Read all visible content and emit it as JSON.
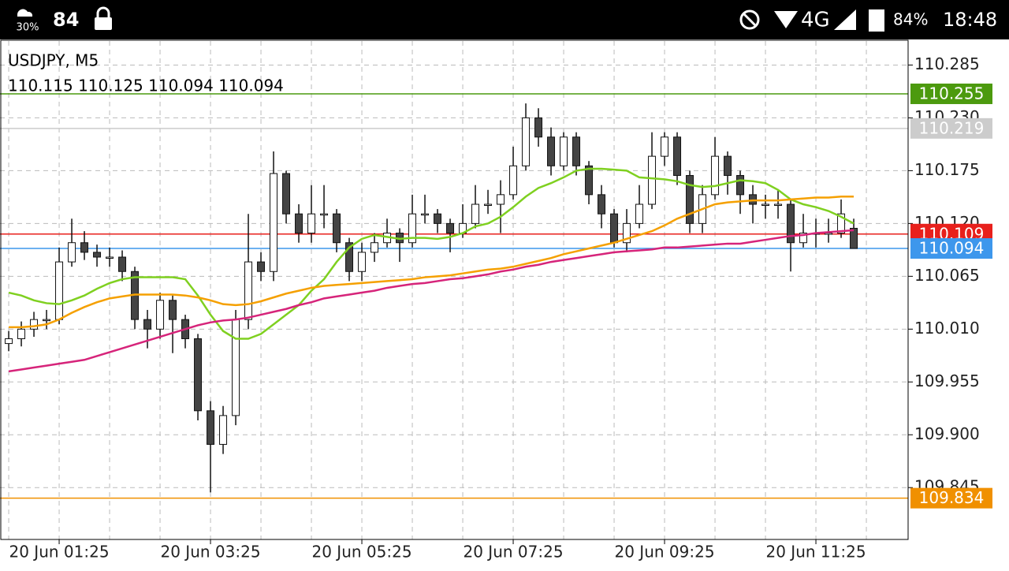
{
  "status_bar": {
    "weather": "30%",
    "notification": "84",
    "network": "4G",
    "battery": "84%",
    "time": "18:48"
  },
  "chart_data": {
    "type": "candlestick",
    "title": "USDJPY, M5",
    "ohlc_label": "110.115 110.125 110.094 110.094",
    "open": [
      109.995,
      110.0,
      110.01,
      110.02,
      110.02,
      110.08,
      110.1,
      110.09,
      110.085,
      110.085,
      110.07,
      110.02,
      110.01,
      110.04,
      110.02,
      110.0,
      109.925,
      109.89,
      109.92,
      110.02,
      110.08,
      110.07,
      110.172,
      110.13,
      110.11,
      110.13,
      110.13,
      110.1,
      110.07,
      110.09,
      110.1,
      110.11,
      110.1,
      110.13,
      110.13,
      110.12,
      110.11,
      110.12,
      110.14,
      110.14,
      110.15,
      110.18,
      110.23,
      110.21,
      110.18,
      110.21,
      110.18,
      110.15,
      110.13,
      110.1,
      110.12,
      110.14,
      110.19,
      110.21,
      110.17,
      110.12,
      110.15,
      110.19,
      110.17,
      110.15,
      110.14,
      110.14,
      110.14,
      110.1,
      110.11,
      110.11,
      110.11,
      110.115
    ],
    "high": [
      110.008,
      110.018,
      110.028,
      110.03,
      110.095,
      110.125,
      110.112,
      110.098,
      110.095,
      110.092,
      110.075,
      110.03,
      110.048,
      110.045,
      110.025,
      110.005,
      109.935,
      109.93,
      110.03,
      110.13,
      110.09,
      110.195,
      110.175,
      110.14,
      110.16,
      110.16,
      110.135,
      110.105,
      110.1,
      110.11,
      110.125,
      110.115,
      110.15,
      110.15,
      110.135,
      110.125,
      110.14,
      110.16,
      110.155,
      110.165,
      110.2,
      110.245,
      110.24,
      110.22,
      110.215,
      110.215,
      110.185,
      110.16,
      110.135,
      110.135,
      110.16,
      110.215,
      110.215,
      110.215,
      110.175,
      110.16,
      110.21,
      110.195,
      110.175,
      110.16,
      110.15,
      110.155,
      110.145,
      110.13,
      110.125,
      110.125,
      110.145,
      110.125
    ],
    "low": [
      109.987,
      109.992,
      110.002,
      110.01,
      110.015,
      110.075,
      110.082,
      110.075,
      110.075,
      110.06,
      110.01,
      109.99,
      110.0,
      109.985,
      109.99,
      109.915,
      109.84,
      109.88,
      109.91,
      110.01,
      110.06,
      110.06,
      110.12,
      110.1,
      110.1,
      110.115,
      110.09,
      110.06,
      110.06,
      110.08,
      110.095,
      110.08,
      110.095,
      110.12,
      110.11,
      110.09,
      110.105,
      110.115,
      110.13,
      110.11,
      110.145,
      110.175,
      110.2,
      110.17,
      110.175,
      110.17,
      110.14,
      110.115,
      110.095,
      110.09,
      110.115,
      110.135,
      110.18,
      110.16,
      110.11,
      110.11,
      110.145,
      110.15,
      110.13,
      110.12,
      110.125,
      110.125,
      110.07,
      110.095,
      110.095,
      110.1,
      110.105,
      110.094
    ],
    "close": [
      110.0,
      110.01,
      110.02,
      110.02,
      110.08,
      110.1,
      110.09,
      110.085,
      110.085,
      110.07,
      110.02,
      110.01,
      110.04,
      110.02,
      110.0,
      109.925,
      109.89,
      109.92,
      110.02,
      110.08,
      110.07,
      110.172,
      110.13,
      110.11,
      110.13,
      110.13,
      110.1,
      110.07,
      110.09,
      110.1,
      110.11,
      110.1,
      110.13,
      110.13,
      110.12,
      110.11,
      110.12,
      110.14,
      110.14,
      110.15,
      110.18,
      110.23,
      110.21,
      110.18,
      110.21,
      110.18,
      110.15,
      110.13,
      110.1,
      110.12,
      110.14,
      110.19,
      110.21,
      110.17,
      110.12,
      110.15,
      110.19,
      110.17,
      110.15,
      110.14,
      110.14,
      110.14,
      110.1,
      110.11,
      110.11,
      110.11,
      110.13,
      110.094
    ],
    "series": [
      {
        "color": "#7fd020",
        "values": [
          110.048,
          110.045,
          110.04,
          110.037,
          110.036,
          110.04,
          110.045,
          110.052,
          110.058,
          110.062,
          110.064,
          110.064,
          110.064,
          110.064,
          110.062,
          110.045,
          110.025,
          110.008,
          110.0,
          110.0,
          110.005,
          110.015,
          110.025,
          110.035,
          110.05,
          110.062,
          110.08,
          110.095,
          110.104,
          110.108,
          110.106,
          110.104,
          110.105,
          110.105,
          110.104,
          110.106,
          110.11,
          110.117,
          110.12,
          110.127,
          110.137,
          110.148,
          110.157,
          110.162,
          110.168,
          110.175,
          110.177,
          110.177,
          110.176,
          110.175,
          110.168,
          110.167,
          110.166,
          110.164,
          110.16,
          110.158,
          110.159,
          110.162,
          110.165,
          110.164,
          110.162,
          110.155,
          110.145,
          110.14,
          110.137,
          110.133,
          110.127,
          110.12
        ]
      },
      {
        "color": "#f5a000",
        "values": [
          110.012,
          110.012,
          110.013,
          110.015,
          110.02,
          110.027,
          110.033,
          110.038,
          110.042,
          110.044,
          110.046,
          110.046,
          110.046,
          110.046,
          110.045,
          110.043,
          110.04,
          110.036,
          110.035,
          110.036,
          110.039,
          110.043,
          110.047,
          110.05,
          110.053,
          110.055,
          110.056,
          110.057,
          110.058,
          110.059,
          110.06,
          110.061,
          110.062,
          110.064,
          110.065,
          110.066,
          110.068,
          110.07,
          110.072,
          110.073,
          110.075,
          110.078,
          110.081,
          110.084,
          110.088,
          110.091,
          110.094,
          110.097,
          110.1,
          110.104,
          110.108,
          110.112,
          110.118,
          110.125,
          110.13,
          110.135,
          110.14,
          110.142,
          110.143,
          110.144,
          110.144,
          110.144,
          110.145,
          110.146,
          110.147,
          110.147,
          110.148,
          110.148
        ]
      },
      {
        "color": "#d6247a",
        "values": [
          109.966,
          109.968,
          109.97,
          109.972,
          109.974,
          109.976,
          109.978,
          109.982,
          109.986,
          109.99,
          109.994,
          109.998,
          110.002,
          110.006,
          110.01,
          110.014,
          110.017,
          110.019,
          110.02,
          110.022,
          110.025,
          110.028,
          110.031,
          110.035,
          110.038,
          110.042,
          110.044,
          110.046,
          110.048,
          110.05,
          110.053,
          110.055,
          110.057,
          110.058,
          110.06,
          110.062,
          110.063,
          110.065,
          110.067,
          110.07,
          110.072,
          110.075,
          110.077,
          110.08,
          110.082,
          110.084,
          110.086,
          110.088,
          110.09,
          110.091,
          110.092,
          110.093,
          110.095,
          110.095,
          110.096,
          110.097,
          110.098,
          110.099,
          110.099,
          110.101,
          110.103,
          110.105,
          110.107,
          110.108,
          110.11,
          110.111,
          110.112,
          110.113
        ]
      }
    ],
    "levels": [
      {
        "value": 110.255,
        "color": "#4c9a0e"
      },
      {
        "value": 110.219,
        "color": "#cccccc"
      },
      {
        "value": 110.109,
        "color": "#e8201c"
      },
      {
        "value": 110.094,
        "color": "#3d97ec"
      },
      {
        "value": 109.834,
        "color": "#f09000"
      }
    ],
    "ylim": [
      109.791,
      110.31
    ],
    "yticks": [
      110.285,
      {
        "value": 110.23,
        "label": "110.230"
      },
      110.175,
      {
        "value": 110.12,
        "label": "110.120"
      },
      110.065,
      {
        "value": 110.01,
        "label": "110.010"
      },
      109.955,
      {
        "value": 109.9,
        "label": "109.900"
      },
      109.845
    ],
    "xlim": [
      -0.69,
      71.31
    ],
    "xticks": [
      {
        "value": 4,
        "label": "20 Jun 01:25"
      },
      {
        "value": 16,
        "label": "20 Jun 03:25"
      },
      {
        "value": 28,
        "label": "20 Jun 05:25"
      },
      {
        "value": 40,
        "label": "20 Jun 07:25"
      },
      {
        "value": 52,
        "label": "20 Jun 09:25"
      },
      {
        "value": 64,
        "label": "20 Jun 11:25"
      }
    ],
    "grid": true
  }
}
